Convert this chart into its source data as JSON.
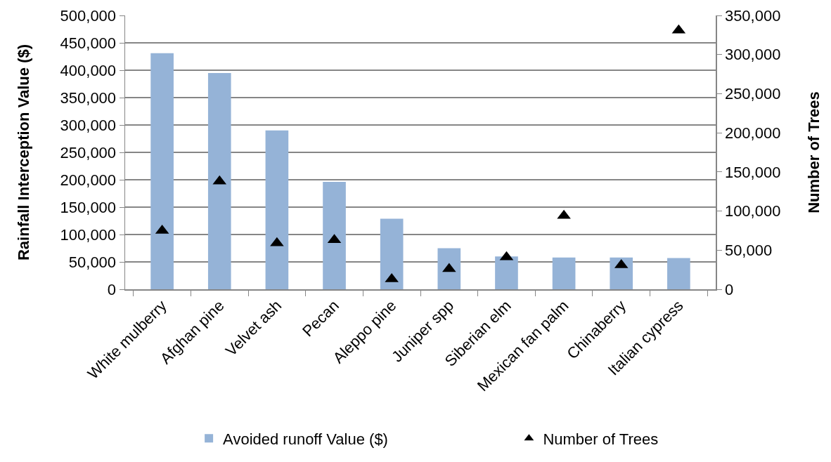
{
  "chart_data": {
    "type": "bar",
    "categories": [
      "White mulberry",
      "Afghan pine",
      "Velvet ash",
      "Pecan",
      "Aleppo pine",
      "Juniper spp",
      "Siberian elm",
      "Mexican fan palm",
      "Chinaberry",
      "Italian cypress"
    ],
    "series": [
      {
        "name": "Avoided runoff Value ($)",
        "color": "#95b3d7",
        "values": [
          431000,
          395000,
          290000,
          196000,
          129000,
          75000,
          60000,
          58000,
          58000,
          57000
        ]
      },
      {
        "name": "Number of Trees",
        "type": "scatter",
        "axis": "y2",
        "marker": "triangle",
        "color": "#000000",
        "values": [
          75000,
          138000,
          59000,
          63000,
          13000,
          26000,
          41000,
          94000,
          31000,
          331000
        ]
      }
    ],
    "ylabel": "Rainfall Interception Value ($)",
    "y2label": "Number of Trees",
    "ylim": [
      0,
      500000
    ],
    "yticks": [
      0,
      {
        "value": 50000,
        "label": "50,000"
      },
      {
        "value": 100000,
        "label": "100,000"
      },
      {
        "value": 150000,
        "label": "150,000"
      },
      {
        "value": 200000,
        "label": "200,000"
      },
      {
        "value": 250000,
        "label": "250,000"
      },
      {
        "value": 300000,
        "label": "300,000"
      },
      {
        "value": 350000,
        "label": "350,000"
      },
      {
        "value": 400000,
        "label": "400,000"
      },
      {
        "value": 450000,
        "label": "450,000"
      },
      {
        "value": 500000,
        "label": "500,000"
      }
    ],
    "y2lim": [
      0,
      350000
    ],
    "y2ticks": [
      0,
      {
        "value": 50000,
        "label": "50,000"
      },
      {
        "value": 100000,
        "label": "100,000"
      },
      {
        "value": 150000,
        "label": "150,000"
      },
      {
        "value": 200000,
        "label": "200,000"
      },
      {
        "value": 250000,
        "label": "250,000"
      },
      {
        "value": 300000,
        "label": "300,000"
      },
      {
        "value": 350000,
        "label": "350,000"
      }
    ],
    "grid": "y",
    "legend": "bottom"
  }
}
